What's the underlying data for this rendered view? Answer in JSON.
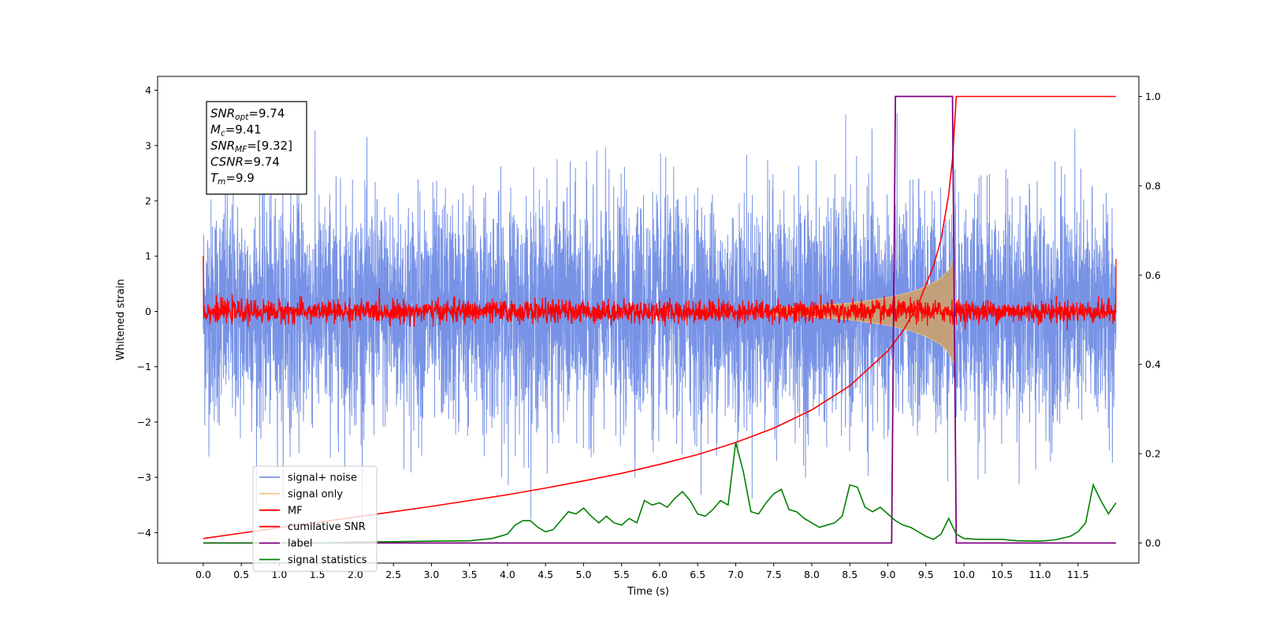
{
  "chart_data": {
    "type": "line",
    "xlabel": "Time (s)",
    "ylabel": "Whitened strain",
    "xlim": [
      -0.6,
      12.3
    ],
    "ylim": [
      -4.55,
      4.25
    ],
    "y2lim": [
      -0.045,
      1.045
    ],
    "x_ticks": [
      0.0,
      0.5,
      1.0,
      1.5,
      2.0,
      2.5,
      3.0,
      3.5,
      4.0,
      4.5,
      5.0,
      5.5,
      6.0,
      6.5,
      7.0,
      7.5,
      8.0,
      8.5,
      9.0,
      9.5,
      10.0,
      10.5,
      11.0,
      11.5
    ],
    "x_tick_labels": [
      "0.0",
      "0.5",
      "1.0",
      "1.5",
      "2.0",
      "2.5",
      "3.0",
      "3.5",
      "4.0",
      "4.5",
      "5.0",
      "5.5",
      "6.0",
      "6.5",
      "7.0",
      "7.5",
      "8.0",
      "8.5",
      "9.0",
      "9.5",
      "10.0",
      "10.5",
      "11.0",
      "11.5"
    ],
    "y_ticks": [
      4,
      3,
      2,
      1,
      0,
      -1,
      -2,
      -3,
      -4
    ],
    "y_tick_labels": [
      "4",
      "3",
      "2",
      "1",
      "0",
      "−1",
      "−2",
      "−3",
      "−4"
    ],
    "y2_ticks": [
      1.0,
      0.8,
      0.6,
      0.4,
      0.2,
      0.0
    ],
    "y2_tick_labels": [
      "1.0",
      "0.8",
      "0.6",
      "0.4",
      "0.2",
      "0.0"
    ],
    "legend_position": "lower-left",
    "grid": false,
    "annotation": {
      "lines": [
        {
          "sym": "SNR",
          "sub": "opt",
          "value": "=9.74"
        },
        {
          "sym": "M",
          "sub": "c",
          "value": "=9.41"
        },
        {
          "sym": "SNR",
          "sub": "MF",
          "value": "=[9.32]"
        },
        {
          "sym": "CSNR",
          "sub": "",
          "value": "=9.74"
        },
        {
          "sym": "T",
          "sub": "m",
          "value": "=9.9"
        }
      ]
    },
    "series": [
      {
        "name": "signal+ noise",
        "axis": "left",
        "color": "#7893e6",
        "style": "noise",
        "x_range": [
          0.0,
          12.0
        ],
        "amplitude_sigma": 1.0,
        "max_abs": 3.85
      },
      {
        "name": "signal only",
        "axis": "left",
        "color": "#f5c77e",
        "style": "chirp-envelope",
        "fill_color": "#c4a07a",
        "x_range": [
          0.0,
          9.9
        ],
        "envelope": [
          [
            8.0,
            0.1
          ],
          [
            8.5,
            0.15
          ],
          [
            9.0,
            0.25
          ],
          [
            9.3,
            0.35
          ],
          [
            9.5,
            0.45
          ],
          [
            9.7,
            0.6
          ],
          [
            9.8,
            0.75
          ],
          [
            9.87,
            0.95
          ],
          [
            9.9,
            0.0
          ]
        ]
      },
      {
        "name": "MF",
        "axis": "left",
        "color": "#ff0000",
        "style": "noise",
        "x_range": [
          0.0,
          12.0
        ],
        "amplitude_sigma": 0.1,
        "max_abs": 0.42,
        "edge_values": [
          1.0,
          0.95
        ]
      },
      {
        "name": "cumilative SNR",
        "axis": "right",
        "color": "#ff0000",
        "style": "line",
        "x": [
          0.0,
          0.5,
          1.0,
          1.5,
          2.0,
          2.5,
          3.0,
          3.5,
          4.0,
          4.5,
          5.0,
          5.5,
          6.0,
          6.5,
          7.0,
          7.5,
          8.0,
          8.5,
          9.0,
          9.2,
          9.4,
          9.6,
          9.7,
          9.8,
          9.85,
          9.9,
          9.95,
          10.0,
          10.5,
          11.0,
          11.5,
          12.0
        ],
        "y": [
          0.01,
          0.022,
          0.034,
          0.046,
          0.058,
          0.07,
          0.082,
          0.095,
          0.108,
          0.123,
          0.139,
          0.156,
          0.176,
          0.198,
          0.225,
          0.257,
          0.298,
          0.352,
          0.43,
          0.475,
          0.535,
          0.62,
          0.68,
          0.78,
          0.86,
          1.0,
          1.0,
          1.0,
          1.0,
          1.0,
          1.0,
          1.0
        ]
      },
      {
        "name": "label",
        "axis": "right",
        "color": "#800080",
        "style": "line",
        "x": [
          0.0,
          9.05,
          9.1,
          9.85,
          9.9,
          12.0
        ],
        "y": [
          0.0,
          0.0,
          1.0,
          1.0,
          0.0,
          0.0
        ]
      },
      {
        "name": "signal statistics",
        "axis": "right",
        "color": "#008000",
        "style": "line",
        "x": [
          0.0,
          0.5,
          1.0,
          1.5,
          2.0,
          2.5,
          3.0,
          3.5,
          3.8,
          4.0,
          4.1,
          4.2,
          4.3,
          4.4,
          4.5,
          4.6,
          4.7,
          4.8,
          4.9,
          5.0,
          5.1,
          5.2,
          5.3,
          5.4,
          5.5,
          5.6,
          5.7,
          5.8,
          5.9,
          6.0,
          6.1,
          6.2,
          6.3,
          6.4,
          6.5,
          6.6,
          6.7,
          6.8,
          6.9,
          7.0,
          7.1,
          7.2,
          7.3,
          7.4,
          7.5,
          7.6,
          7.7,
          7.8,
          7.9,
          8.0,
          8.1,
          8.2,
          8.3,
          8.4,
          8.5,
          8.6,
          8.7,
          8.8,
          8.9,
          9.0,
          9.1,
          9.2,
          9.3,
          9.4,
          9.5,
          9.6,
          9.7,
          9.8,
          9.9,
          10.0,
          10.2,
          10.5,
          10.7,
          11.0,
          11.2,
          11.4,
          11.5,
          11.6,
          11.7,
          11.8,
          11.9,
          12.0
        ],
        "y": [
          0.0,
          0.0,
          0.0,
          0.0,
          0.002,
          0.003,
          0.004,
          0.005,
          0.01,
          0.02,
          0.04,
          0.05,
          0.05,
          0.035,
          0.025,
          0.03,
          0.05,
          0.07,
          0.065,
          0.078,
          0.06,
          0.045,
          0.06,
          0.045,
          0.04,
          0.055,
          0.045,
          0.095,
          0.085,
          0.09,
          0.08,
          0.1,
          0.115,
          0.095,
          0.065,
          0.06,
          0.075,
          0.095,
          0.085,
          0.225,
          0.16,
          0.07,
          0.065,
          0.09,
          0.11,
          0.12,
          0.075,
          0.07,
          0.055,
          0.045,
          0.035,
          0.04,
          0.045,
          0.06,
          0.13,
          0.125,
          0.08,
          0.07,
          0.08,
          0.065,
          0.05,
          0.04,
          0.035,
          0.025,
          0.015,
          0.008,
          0.02,
          0.055,
          0.02,
          0.01,
          0.008,
          0.008,
          0.005,
          0.004,
          0.007,
          0.015,
          0.025,
          0.045,
          0.13,
          0.095,
          0.065,
          0.09
        ]
      }
    ]
  }
}
